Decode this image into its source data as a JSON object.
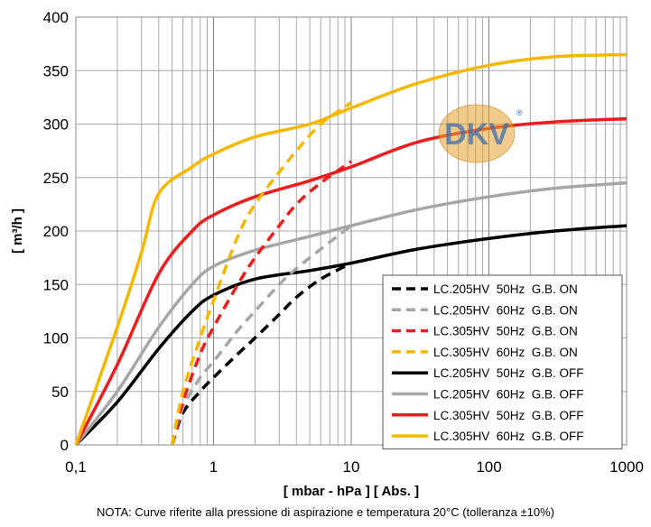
{
  "chart_data": {
    "type": "line",
    "x_scale": "log",
    "xlabel": "[ mbar - hPa ] [ Abs. ]",
    "ylabel": "[ m³/h ]",
    "xlim": [
      0.1,
      1000
    ],
    "ylim": [
      0,
      400
    ],
    "x_ticks": [
      {
        "value": 0.1,
        "label": "0,1"
      },
      {
        "value": 1,
        "label": "1"
      },
      {
        "value": 10,
        "label": "10"
      },
      {
        "value": 100,
        "label": "100"
      },
      {
        "value": 1000,
        "label": "1000"
      }
    ],
    "y_ticks": [
      0,
      50,
      100,
      150,
      200,
      250,
      300,
      350,
      400
    ],
    "grid": true,
    "legend_position": "bottom-right",
    "series": [
      {
        "name": "LC.205HV  50Hz  G.B. ON",
        "color": "#000000",
        "dashed": true,
        "x": [
          0.5,
          0.6,
          0.8,
          1,
          1.5,
          2,
          3,
          4,
          6,
          10
        ],
        "y": [
          0,
          30,
          50,
          63,
          85,
          100,
          122,
          138,
          155,
          170
        ]
      },
      {
        "name": "LC.205HV  60Hz  G.B. ON",
        "color": "#a6a6a6",
        "dashed": true,
        "x": [
          0.5,
          0.6,
          0.8,
          1,
          1.5,
          2,
          3,
          4,
          6,
          10
        ],
        "y": [
          0,
          35,
          63,
          78,
          107,
          125,
          150,
          165,
          183,
          205
        ]
      },
      {
        "name": "LC.305HV  50Hz  G.B. ON",
        "color": "#ee1c1c",
        "dashed": true,
        "x": [
          0.5,
          0.6,
          0.8,
          1,
          1.5,
          2,
          3,
          4,
          6,
          10
        ],
        "y": [
          0,
          40,
          85,
          110,
          150,
          175,
          205,
          225,
          245,
          265
        ]
      },
      {
        "name": "LC.305HV  60Hz  G.B. ON",
        "color": "#f5b800",
        "dashed": true,
        "x": [
          0.5,
          0.6,
          0.8,
          1,
          1.5,
          2,
          3,
          4,
          6,
          10
        ],
        "y": [
          0,
          50,
          100,
          135,
          195,
          225,
          255,
          275,
          300,
          320
        ]
      },
      {
        "name": "LC.205HV  50Hz  G.B. OFF",
        "color": "#000000",
        "dashed": false,
        "x": [
          0.1,
          0.2,
          0.4,
          0.7,
          1,
          2,
          5,
          10,
          30,
          100,
          300,
          1000
        ],
        "y": [
          0,
          40,
          90,
          125,
          140,
          155,
          163,
          170,
          183,
          193,
          200,
          205
        ]
      },
      {
        "name": "LC.205HV  60Hz  G.B. OFF",
        "color": "#a6a6a6",
        "dashed": false,
        "x": [
          0.1,
          0.2,
          0.4,
          0.7,
          1,
          2,
          5,
          10,
          30,
          100,
          300,
          1000
        ],
        "y": [
          0,
          50,
          110,
          150,
          167,
          182,
          195,
          205,
          220,
          232,
          240,
          245
        ]
      },
      {
        "name": "LC.305HV  50Hz  G.B. OFF",
        "color": "#ee1c1c",
        "dashed": false,
        "x": [
          0.1,
          0.2,
          0.4,
          0.7,
          1,
          2,
          5,
          10,
          30,
          100,
          300,
          1000
        ],
        "y": [
          0,
          75,
          160,
          200,
          215,
          232,
          247,
          260,
          283,
          296,
          302,
          305
        ]
      },
      {
        "name": "LC.305HV  60Hz  G.B. OFF",
        "color": "#f5b800",
        "dashed": false,
        "x": [
          0.1,
          0.2,
          0.3,
          0.4,
          0.7,
          1,
          2,
          5,
          10,
          30,
          100,
          300,
          1000
        ],
        "y": [
          0,
          110,
          180,
          235,
          260,
          272,
          288,
          300,
          315,
          338,
          355,
          363,
          365
        ]
      }
    ]
  },
  "logo": {
    "text": "DKV",
    "reg_mark": "®"
  },
  "note": "NOTA:  Curve riferite alla pressione di aspirazione e temperatura 20°C (tolleranza ±10%)"
}
